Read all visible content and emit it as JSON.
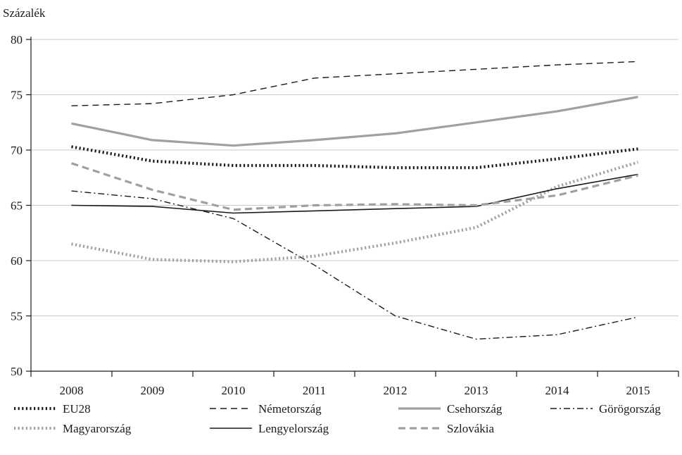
{
  "chart_data": {
    "type": "line",
    "ylabel": "Százalék",
    "ylim": [
      50,
      80
    ],
    "yticks": [
      50,
      55,
      60,
      65,
      70,
      75,
      80
    ],
    "grid": true,
    "legend_position": "bottom",
    "x": [
      "2008",
      "2009",
      "2010",
      "2011",
      "2012",
      "2013",
      "2014",
      "2015"
    ],
    "series": [
      {
        "name": "EU28",
        "color": "#1a1a1a",
        "style": "dotted-thick",
        "values": [
          70.3,
          69.0,
          68.6,
          68.6,
          68.4,
          68.4,
          69.2,
          70.1
        ]
      },
      {
        "name": "Németország",
        "color": "#1a1a1a",
        "style": "dashed",
        "values": [
          74.0,
          74.2,
          75.0,
          76.5,
          76.9,
          77.3,
          77.7,
          78.0
        ]
      },
      {
        "name": "Csehország",
        "color": "#a0a0a0",
        "style": "solid-thick",
        "values": [
          72.4,
          70.9,
          70.4,
          70.9,
          71.5,
          72.5,
          73.5,
          74.8
        ]
      },
      {
        "name": "Görögország",
        "color": "#1a1a1a",
        "style": "dash-dot",
        "values": [
          66.3,
          65.6,
          63.8,
          59.6,
          55.0,
          52.9,
          53.3,
          54.9
        ]
      },
      {
        "name": "Magyarország",
        "color": "#a0a0a0",
        "style": "dotted-thick",
        "values": [
          61.5,
          60.1,
          59.9,
          60.4,
          61.6,
          63.0,
          66.7,
          68.9
        ]
      },
      {
        "name": "Lengyelország",
        "color": "#1a1a1a",
        "style": "solid",
        "values": [
          65.0,
          64.9,
          64.3,
          64.5,
          64.7,
          64.9,
          66.5,
          67.8
        ]
      },
      {
        "name": "Szlovákia",
        "color": "#a0a0a0",
        "style": "dashed-thick",
        "values": [
          68.8,
          66.4,
          64.6,
          65.0,
          65.1,
          65.0,
          65.9,
          67.7
        ]
      }
    ]
  }
}
